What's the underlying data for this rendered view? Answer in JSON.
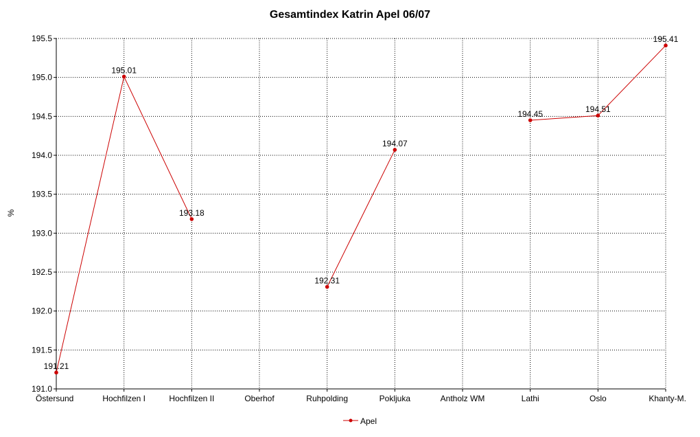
{
  "chart_data": {
    "type": "line",
    "title": "Gesamtindex Katrin Apel 06/07",
    "xlabel": "",
    "ylabel": "%",
    "categories": [
      "Östersund",
      "Hochfilzen I",
      "Hochfilzen II",
      "Oberhof",
      "Ruhpolding",
      "Pokljuka",
      "Antholz WM",
      "Lathi",
      "Oslo",
      "Khanty-M."
    ],
    "ylim": [
      191.0,
      195.5
    ],
    "yticks": [
      "191.0",
      "191.5",
      "192.0",
      "192.5",
      "193.0",
      "193.5",
      "194.0",
      "194.5",
      "195.0",
      "195.5"
    ],
    "grid": true,
    "legend_position": "bottom",
    "series": [
      {
        "name": "Apel",
        "color": "#cc0000",
        "values": [
          191.21,
          195.01,
          193.18,
          null,
          192.31,
          194.07,
          null,
          194.45,
          194.51,
          195.41
        ],
        "labels": [
          "191.21",
          "195.01",
          "193.18",
          "",
          "192.31",
          "194.07",
          "",
          "194.45",
          "194.51",
          "195.41"
        ]
      }
    ]
  }
}
